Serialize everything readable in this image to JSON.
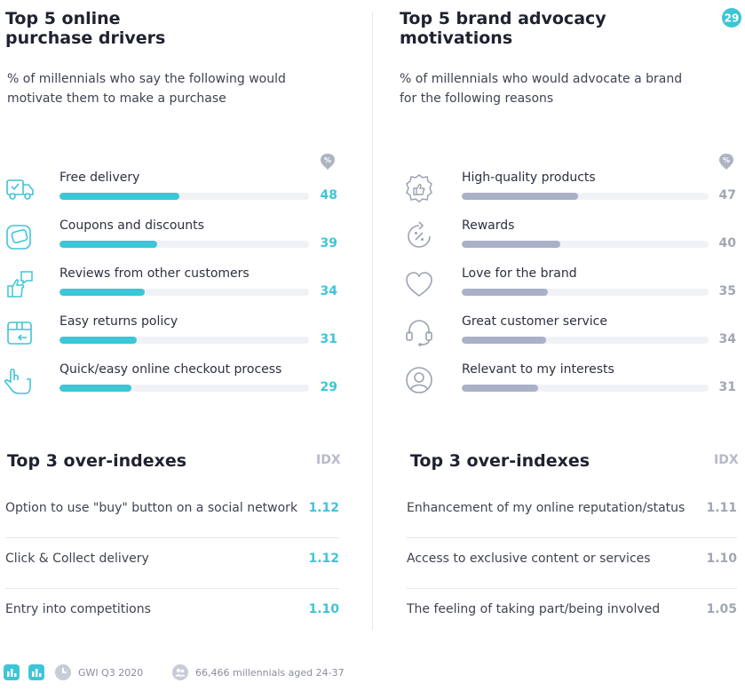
{
  "page_number": "29",
  "left": {
    "title": "Top 5 online\npurchase drivers",
    "subtitle": "% of millennials who say the following would motivate them to make a purchase",
    "unit_badge": "%",
    "accent": "#3ec5d6",
    "over_title": "Top 3 over-indexes",
    "idx_label": "IDX",
    "over_indexes": [
      {
        "label": "Option to use \"buy\" button on a social network",
        "value": "1.12"
      },
      {
        "label": "Click & Collect delivery",
        "value": "1.12"
      },
      {
        "label": "Entry into competitions",
        "value": "1.10"
      }
    ]
  },
  "right": {
    "title": "Top 5 brand advocacy\nmotivations",
    "subtitle": "% of millennials who would advocate a brand for the following reasons",
    "unit_badge": "%",
    "accent": "#a9b1c9",
    "value_color": "#a2a6b4",
    "over_title": "Top 3 over-indexes",
    "idx_label": "IDX",
    "over_indexes": [
      {
        "label": "Enhancement of my online reputation/status",
        "value": "1.11"
      },
      {
        "label": "Access to exclusive content or services",
        "value": "1.10"
      },
      {
        "label": "The feeling of taking part/being involved",
        "value": "1.05"
      }
    ]
  },
  "chart_data": [
    {
      "type": "bar",
      "title": "Top 5 online purchase drivers",
      "categories": [
        "Free delivery",
        "Coupons and discounts",
        "Reviews from other customers",
        "Easy returns policy",
        "Quick/easy online checkout process"
      ],
      "values": [
        48,
        39,
        34,
        31,
        29
      ],
      "icons": [
        "delivery-truck-icon",
        "coupon-icon",
        "thumbs-review-icon",
        "returns-box-icon",
        "hand-tap-icon"
      ],
      "ylim": [
        0,
        100
      ]
    },
    {
      "type": "bar",
      "title": "Top 5 brand advocacy motivations",
      "categories": [
        "High-quality products",
        "Rewards",
        "Love for the brand",
        "Great customer service",
        "Relevant to my interests"
      ],
      "values": [
        47,
        40,
        35,
        34,
        31
      ],
      "icons": [
        "quality-badge-icon",
        "reward-percent-icon",
        "heart-icon",
        "headset-icon",
        "user-icon"
      ],
      "ylim": [
        0,
        100
      ]
    }
  ],
  "footer": {
    "source": "GWI Q3 2020",
    "sample": "66,466 millennials aged 24-37"
  }
}
